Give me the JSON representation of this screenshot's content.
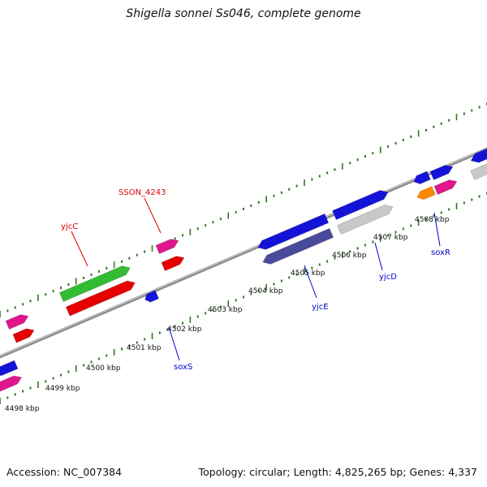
{
  "title": "Shigella sonnei Ss046, complete genome",
  "footer": {
    "accession": "Accession: NC_007384",
    "summary": "Topology: circular; Length: 4,825,265 bp; Genes: 4,337"
  },
  "colors": {
    "backbone": "#8c8c8c",
    "tick": "#2d7a1f",
    "label_red": "#dd0000",
    "label_blue": "#0000cc",
    "blue": "#1414d8",
    "magenta": "#e0168c",
    "red": "#e60000",
    "green": "#33bb33",
    "gray": "#c8c8c8",
    "navy": "#4a4a9c",
    "orange": "#ff8800"
  },
  "scale_labels": [
    "4498 kbp",
    "4499 kbp",
    "4500 kbp",
    "4501 kbp",
    "4502 kbp",
    "4503 kbp",
    "4504 kbp",
    "4505 kbp",
    "4506 kbp",
    "4507 kbp",
    "4508 kbp"
  ],
  "gene_labels": [
    {
      "text": "SSON_4243",
      "color": "red"
    },
    {
      "text": "yjcC",
      "color": "red"
    },
    {
      "text": "soxS",
      "color": "blue"
    },
    {
      "text": "yjcE",
      "color": "blue"
    },
    {
      "text": "yjcD",
      "color": "blue"
    },
    {
      "text": "soxR",
      "color": "blue"
    }
  ]
}
